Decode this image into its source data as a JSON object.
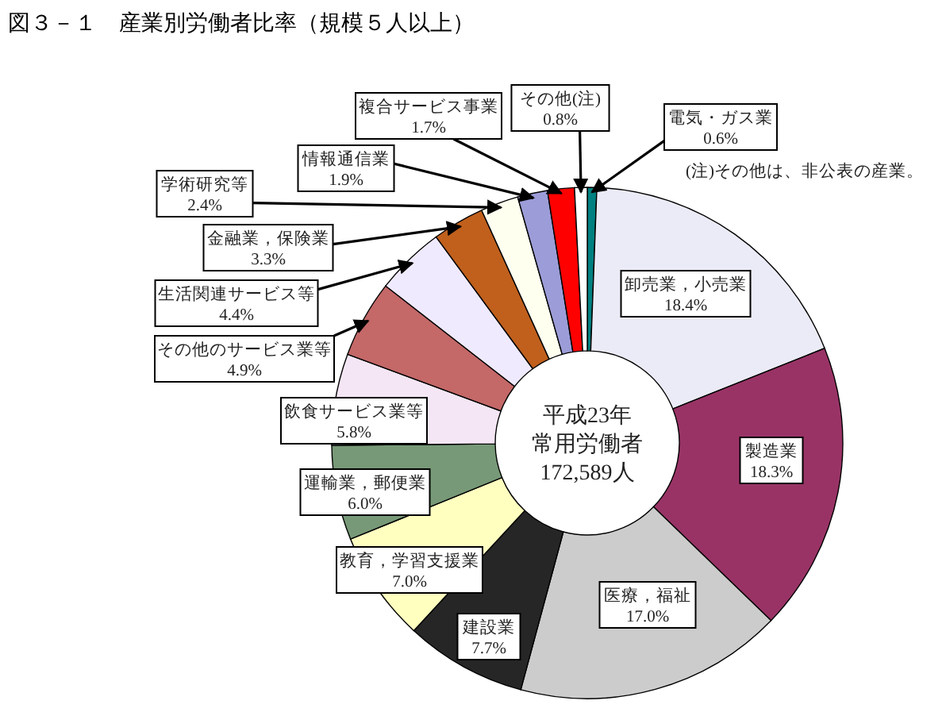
{
  "chart_data": {
    "type": "donut",
    "title": "図３－１　産業別労働者比率（規模５人以上）",
    "categories": [
      "電気・ガス業",
      "卸売業，小売業",
      "製造業",
      "医療，福祉",
      "建設業",
      "教育，学習支援業",
      "運輸業，郵便業",
      "飲食サービス業等",
      "その他のサービス業等",
      "生活関連サービス等",
      "金融業，保険業",
      "学術研究等",
      "情報通信業",
      "複合サービス事業",
      "その他(注)"
    ],
    "values": [
      0.6,
      18.4,
      18.3,
      17.0,
      7.7,
      7.0,
      6.0,
      5.8,
      4.9,
      4.4,
      3.3,
      2.4,
      1.9,
      1.7,
      0.8
    ],
    "value_labels": [
      "0.6%",
      "18.4%",
      "18.3%",
      "17.0%",
      "7.7%",
      "7.0%",
      "6.0%",
      "5.8%",
      "4.9%",
      "4.4%",
      "3.3%",
      "2.4%",
      "1.9%",
      "1.7%",
      "0.8%"
    ],
    "colors": [
      "#008080",
      "#ebebf7",
      "#993366",
      "#cccccc",
      "#262626",
      "#ffffc0",
      "#779977",
      "#f4e6f4",
      "#c46868",
      "#f0eaff",
      "#c0601c",
      "#fffff0",
      "#9c9cd8",
      "#ff0000",
      "#ffffff"
    ],
    "annotations": [
      "平成23年",
      "常用労働者",
      "172,589人",
      "(注)その他は、非公表の産業。"
    ]
  }
}
